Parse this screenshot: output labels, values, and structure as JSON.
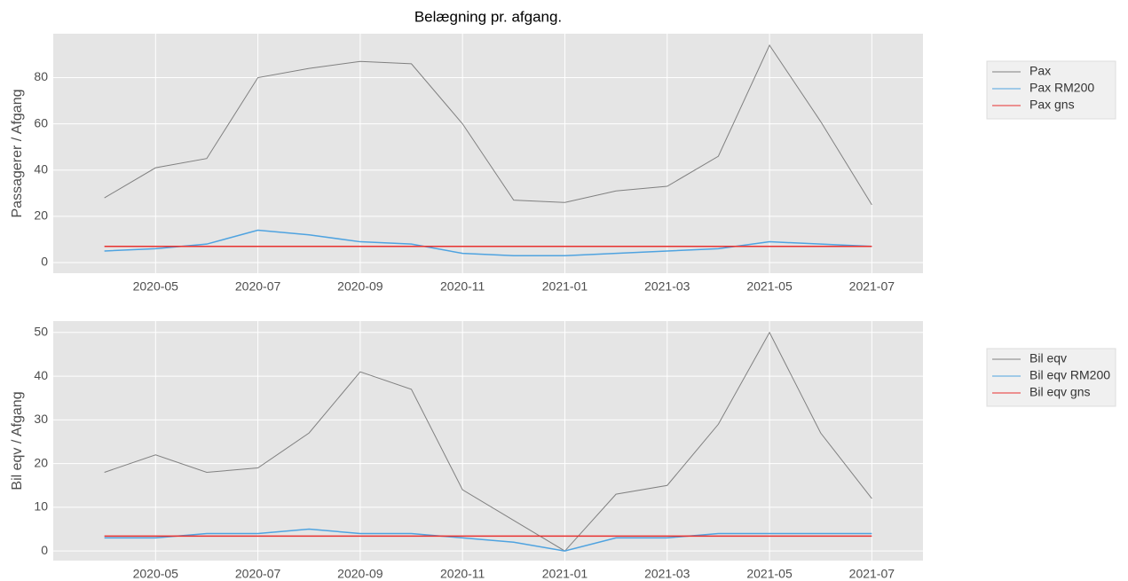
{
  "chart_data": [
    {
      "type": "line",
      "title": "Belægning pr. afgang.",
      "y_label": "Passagerer / Afgang",
      "x": [
        "2020-04",
        "2020-05",
        "2020-06",
        "2020-07",
        "2020-08",
        "2020-09",
        "2020-10",
        "2020-11",
        "2020-12",
        "2021-01",
        "2021-02",
        "2021-03",
        "2021-04",
        "2021-05",
        "2021-06",
        "2021-07"
      ],
      "series": [
        {
          "name": "Pax",
          "color": "#808080",
          "values": [
            28,
            41,
            45,
            80,
            84,
            87,
            86,
            60,
            27,
            26,
            31,
            33,
            46,
            94,
            61,
            25
          ]
        },
        {
          "name": "Pax RM200",
          "color": "#4fa3e0",
          "values": [
            5,
            6,
            8,
            14,
            12,
            9,
            8,
            4,
            3,
            3,
            4,
            5,
            6,
            9,
            8,
            7
          ]
        },
        {
          "name": "Pax gns",
          "color": "#e8312f",
          "values": [
            7,
            7,
            7,
            7,
            7,
            7,
            7,
            7,
            7,
            7,
            7,
            7,
            7,
            7,
            7,
            7
          ]
        }
      ],
      "xlim": [
        "2020-03",
        "2021-08"
      ],
      "xticks": [
        "2020-05",
        "2020-07",
        "2020-09",
        "2020-11",
        "2021-01",
        "2021-03",
        "2021-05",
        "2021-07"
      ],
      "ylim": [
        -4.6,
        99
      ],
      "yticks": [
        0,
        20,
        40,
        60,
        80
      ],
      "grid": true,
      "legend": "outside right"
    },
    {
      "type": "line",
      "y_label": "Bil eqv / Afgang",
      "x": [
        "2020-04",
        "2020-05",
        "2020-06",
        "2020-07",
        "2020-08",
        "2020-09",
        "2020-10",
        "2020-11",
        "2020-12",
        "2021-01",
        "2021-02",
        "2021-03",
        "2021-04",
        "2021-05",
        "2021-06",
        "2021-07"
      ],
      "series": [
        {
          "name": "Bil eqv",
          "color": "#808080",
          "values": [
            18,
            22,
            18,
            19,
            27,
            41,
            37,
            14,
            7,
            0,
            13,
            15,
            29,
            50,
            27,
            12
          ]
        },
        {
          "name": "Bil eqv RM200",
          "color": "#4fa3e0",
          "values": [
            3,
            3,
            4,
            4,
            5,
            4,
            4,
            3,
            2,
            0,
            3,
            3,
            4,
            4,
            4,
            4
          ]
        },
        {
          "name": "Bil eqv gns",
          "color": "#e8312f",
          "values": [
            3.4,
            3.4,
            3.4,
            3.4,
            3.4,
            3.4,
            3.4,
            3.4,
            3.4,
            3.4,
            3.4,
            3.4,
            3.4,
            3.4,
            3.4,
            3.4
          ]
        }
      ],
      "xlim": [
        "2020-03",
        "2021-08"
      ],
      "xticks": [
        "2020-05",
        "2020-07",
        "2020-09",
        "2020-11",
        "2021-01",
        "2021-03",
        "2021-05",
        "2021-07"
      ],
      "ylim": [
        -2.2,
        52.6
      ],
      "yticks": [
        0,
        10,
        20,
        30,
        40,
        50
      ],
      "grid": true,
      "legend": "outside right"
    }
  ]
}
